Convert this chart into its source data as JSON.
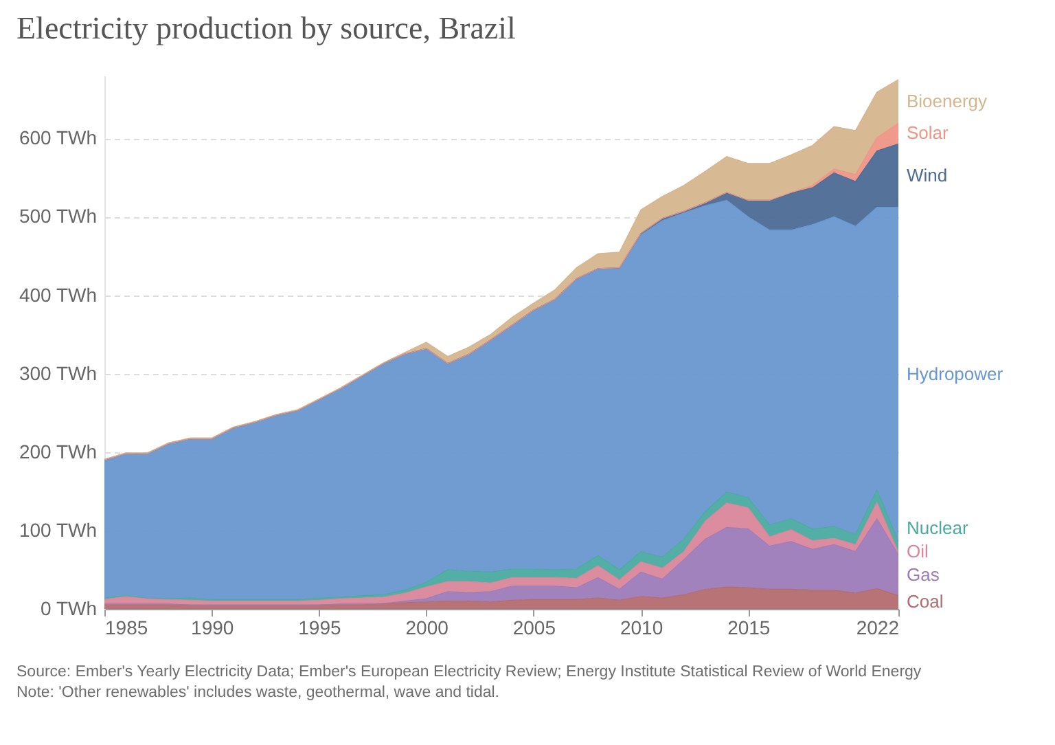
{
  "chart_data": {
    "type": "area",
    "stacked": true,
    "title": "Electricity production by source, Brazil",
    "x": [
      1985,
      1986,
      1987,
      1988,
      1989,
      1990,
      1991,
      1992,
      1993,
      1994,
      1995,
      1996,
      1997,
      1998,
      1999,
      2000,
      2001,
      2002,
      2003,
      2004,
      2005,
      2006,
      2007,
      2008,
      2009,
      2010,
      2011,
      2012,
      2013,
      2014,
      2015,
      2016,
      2017,
      2018,
      2019,
      2020,
      2021,
      2022
    ],
    "series": [
      {
        "name": "Coal",
        "color": "#b36b6f",
        "values": [
          6,
          6,
          6,
          6,
          5,
          5,
          5,
          5,
          5,
          5,
          5,
          6,
          6,
          7,
          8,
          9,
          10,
          10,
          9,
          11,
          12,
          12,
          12,
          14,
          11,
          16,
          14,
          18,
          25,
          28,
          27,
          25,
          25,
          24,
          24,
          20,
          26,
          17
        ]
      },
      {
        "name": "Gas",
        "color": "#9d7bb8",
        "values": [
          0,
          0,
          0,
          0,
          0,
          0,
          0,
          0,
          0,
          0,
          0,
          0,
          0,
          0,
          2,
          4,
          12,
          11,
          13,
          18,
          17,
          17,
          15,
          26,
          14,
          31,
          24,
          45,
          64,
          76,
          75,
          55,
          61,
          52,
          58,
          53,
          89,
          52
        ]
      },
      {
        "name": "Oil",
        "color": "#d9869a",
        "values": [
          6,
          10,
          7,
          6,
          6,
          5,
          5,
          5,
          5,
          5,
          6,
          7,
          8,
          8,
          10,
          15,
          13,
          14,
          11,
          11,
          11,
          11,
          12,
          15,
          12,
          13,
          14,
          10,
          23,
          31,
          27,
          12,
          15,
          11,
          8,
          9,
          21,
          3
        ]
      },
      {
        "name": "Nuclear",
        "color": "#4aaaa1",
        "values": [
          2,
          1,
          1,
          1,
          3,
          2,
          2,
          2,
          2,
          2,
          3,
          2,
          3,
          3,
          4,
          6,
          15,
          13,
          14,
          11,
          11,
          10,
          12,
          13,
          13,
          13,
          14,
          16,
          12,
          14,
          13,
          15,
          14,
          15,
          15,
          13,
          16,
          14
        ]
      },
      {
        "name": "Hydropower",
        "color": "#6897cf",
        "values": [
          176,
          181,
          184,
          198,
          203,
          205,
          219,
          226,
          235,
          241,
          253,
          266,
          280,
          295,
          301,
          298,
          263,
          277,
          296,
          311,
          330,
          345,
          370,
          366,
          384,
          404,
          429,
          416,
          390,
          372,
          358,
          376,
          368,
          388,
          395,
          393,
          360,
          426
        ]
      },
      {
        "name": "Wind",
        "color": "#4c6a96",
        "values": [
          0,
          0,
          0,
          0,
          0,
          0,
          0,
          0,
          0,
          0,
          0,
          0,
          0,
          0,
          0,
          0,
          0,
          0,
          0,
          0,
          0,
          0,
          0,
          0,
          1,
          2,
          3,
          2,
          4,
          10,
          21,
          38,
          47,
          47,
          56,
          57,
          72,
          81
        ]
      },
      {
        "name": "Solar",
        "color": "#ef9585",
        "values": [
          0,
          0,
          0,
          0,
          0,
          0,
          0,
          0,
          0,
          0,
          0,
          0,
          0,
          0,
          0,
          0,
          0,
          0,
          0,
          0,
          0,
          0,
          0,
          0,
          0,
          0,
          0,
          0,
          0,
          0,
          0,
          0,
          1,
          3,
          5,
          9,
          17,
          26
        ]
      },
      {
        "name": "Bioenergy",
        "color": "#d5b58e",
        "values": [
          1,
          1,
          1,
          1,
          1,
          1,
          1,
          1,
          1,
          1,
          1,
          1,
          1,
          1,
          2,
          8,
          9,
          9,
          7,
          10,
          9,
          12,
          14,
          19,
          20,
          30,
          28,
          33,
          40,
          46,
          47,
          47,
          48,
          51,
          54,
          56,
          58,
          56
        ]
      }
    ],
    "xlim": [
      1985,
      2022
    ],
    "xticks": [
      1985,
      1990,
      1995,
      2000,
      2005,
      2010,
      2015,
      2022
    ],
    "yticks": [
      {
        "value": 0,
        "label": "0 TWh"
      },
      {
        "value": 100,
        "label": "100 TWh"
      },
      {
        "value": 200,
        "label": "200 TWh"
      },
      {
        "value": 300,
        "label": "300 TWh"
      },
      {
        "value": 400,
        "label": "400 TWh"
      },
      {
        "value": 500,
        "label": "500 TWh"
      },
      {
        "value": 600,
        "label": "600 TWh"
      }
    ],
    "ylim": [
      0,
      680
    ],
    "grid": "y",
    "legend": "right",
    "annotations": [
      "Source: Ember's Yearly Electricity Data; Ember's European Electricity Review; Energy Institute Statistical Review of World Energy",
      "Note: 'Other renewables' includes waste, geothermal, wave and tidal."
    ]
  }
}
